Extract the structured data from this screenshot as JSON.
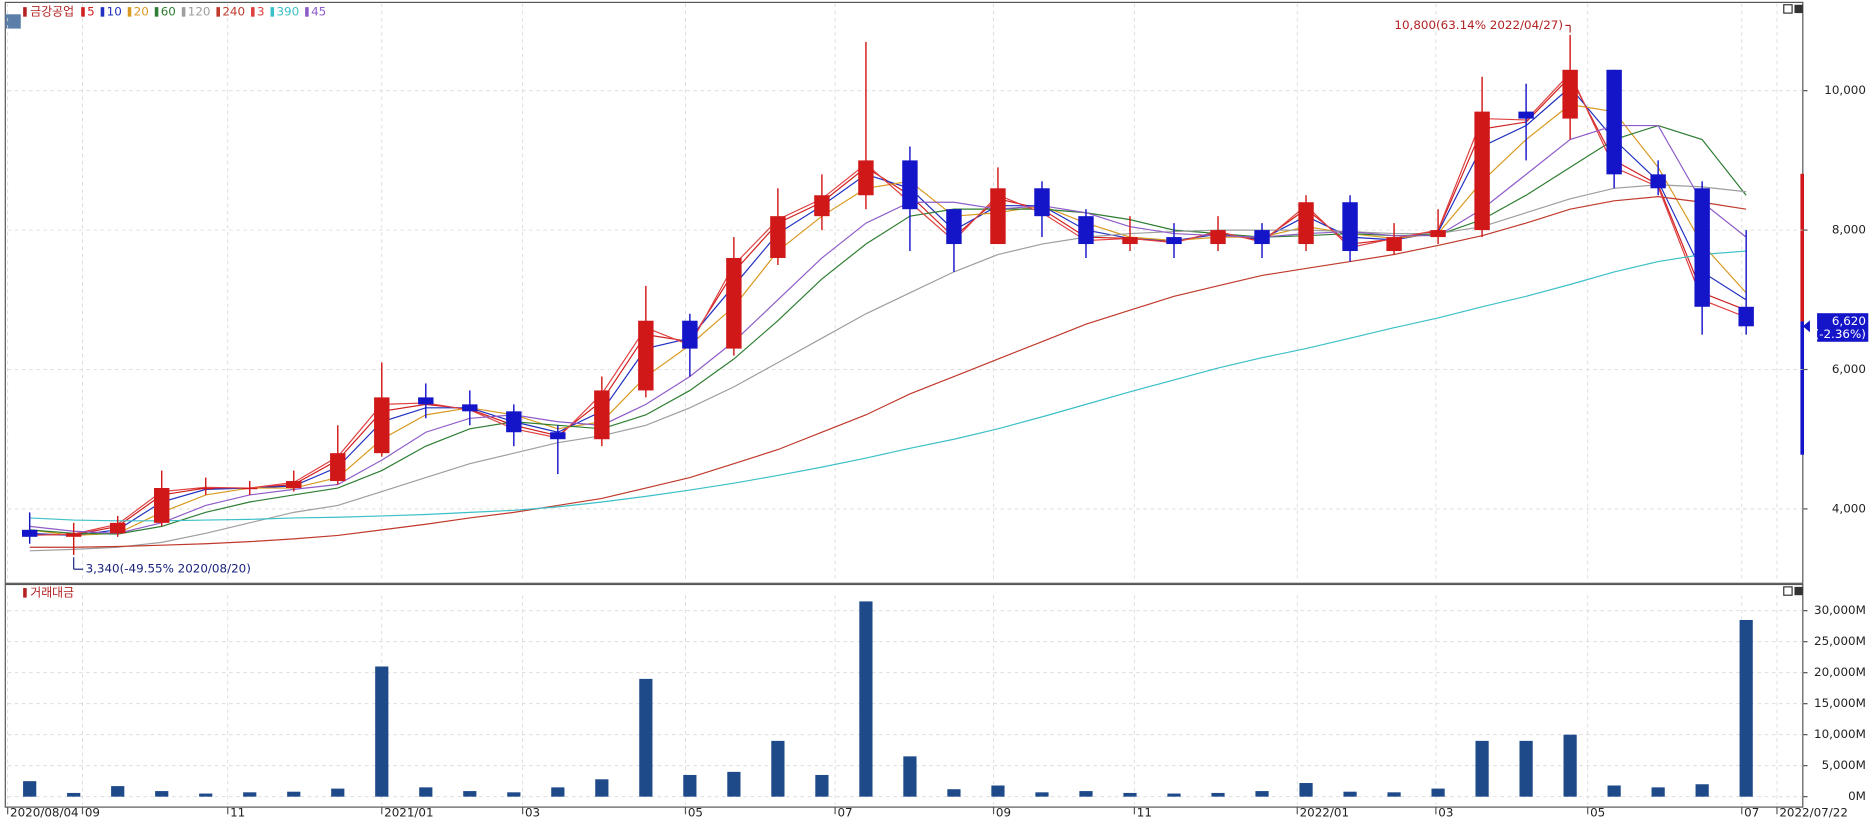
{
  "chart_data": [
    {
      "type": "candlestick",
      "title": "금강공업",
      "open": [
        3700,
        3600,
        3650,
        3800,
        4300,
        4300,
        4300,
        4400,
        4800,
        5600,
        5500,
        5400,
        5100,
        5000,
        5700,
        6700,
        6300,
        7600,
        8200,
        8500,
        9000,
        8300,
        7800,
        8600,
        8200,
        7800,
        7900,
        7800,
        8000,
        7800,
        8400,
        7700,
        7900,
        8000,
        9700,
        9600,
        10300,
        8800,
        8600,
        6900
      ],
      "high": [
        3950,
        3800,
        3900,
        4550,
        4450,
        4400,
        4550,
        5200,
        6100,
        5800,
        5700,
        5500,
        5200,
        5900,
        7200,
        6800,
        7900,
        8600,
        8800,
        10700,
        9200,
        8300,
        8900,
        8700,
        8300,
        8200,
        8100,
        8200,
        8100,
        8500,
        8500,
        8100,
        8300,
        10200,
        10100,
        10800,
        10300,
        9000,
        8700,
        8000
      ],
      "low": [
        3500,
        3340,
        3600,
        3750,
        4200,
        4200,
        4250,
        4350,
        4750,
        5300,
        5200,
        4900,
        4500,
        4900,
        5600,
        5900,
        6200,
        7500,
        8000,
        8300,
        7700,
        7400,
        7800,
        7900,
        7600,
        7700,
        7600,
        7700,
        7600,
        7700,
        7550,
        7650,
        7800,
        7900,
        9000,
        9300,
        8600,
        8500,
        6500,
        6500
      ],
      "close": [
        3600,
        3650,
        3800,
        4300,
        4300,
        4300,
        4400,
        4800,
        5600,
        5500,
        5400,
        5100,
        5000,
        5700,
        6700,
        6300,
        7600,
        8200,
        8500,
        9000,
        8300,
        7800,
        8600,
        8200,
        7800,
        7900,
        7800,
        8000,
        7800,
        8400,
        7700,
        7900,
        8000,
        9700,
        9600,
        10300,
        8800,
        8600,
        6900,
        6620
      ],
      "up_color": "#d01818",
      "down_color": "#1414c8",
      "series": [
        {
          "name": "5",
          "color": "#d02020",
          "values": [
            3630,
            3630,
            3750,
            4200,
            4300,
            4300,
            4350,
            4700,
            5400,
            5500,
            5430,
            5200,
            5050,
            5550,
            6500,
            6400,
            7400,
            8100,
            8400,
            8900,
            8500,
            7900,
            8450,
            8300,
            7900,
            7880,
            7830,
            7960,
            7850,
            8300,
            7800,
            7870,
            7990,
            9450,
            9550,
            10200,
            9000,
            8650,
            7100,
            6850
          ]
        },
        {
          "name": "10",
          "color": "#2030c0",
          "values": [
            3650,
            3620,
            3700,
            4100,
            4280,
            4300,
            4330,
            4600,
            5250,
            5450,
            5450,
            5250,
            5100,
            5400,
            6300,
            6450,
            7200,
            7950,
            8350,
            8800,
            8600,
            8000,
            8350,
            8350,
            8000,
            7880,
            7850,
            7940,
            7870,
            8200,
            7900,
            7860,
            7970,
            9200,
            9500,
            10050,
            9300,
            8700,
            7400,
            7000
          ]
        },
        {
          "name": "20",
          "color": "#d89a20",
          "values": [
            3700,
            3620,
            3650,
            3950,
            4200,
            4300,
            4300,
            4450,
            5000,
            5350,
            5450,
            5350,
            5150,
            5250,
            5900,
            6350,
            6900,
            7700,
            8200,
            8600,
            8700,
            8200,
            8250,
            8350,
            8100,
            7900,
            7850,
            7900,
            7900,
            8050,
            7950,
            7880,
            7950,
            8700,
            9300,
            9800,
            9700,
            8900,
            7800,
            7100
          ]
        },
        {
          "name": "60",
          "color": "#2e7d32",
          "values": [
            3700,
            3650,
            3640,
            3750,
            3950,
            4100,
            4200,
            4300,
            4550,
            4900,
            5150,
            5250,
            5200,
            5150,
            5350,
            5700,
            6150,
            6700,
            7300,
            7800,
            8200,
            8300,
            8300,
            8300,
            8250,
            8150,
            8000,
            7950,
            7900,
            7920,
            7950,
            7920,
            7930,
            8150,
            8500,
            8900,
            9300,
            9500,
            9300,
            8500
          ]
        },
        {
          "name": "120",
          "color": "#9e9e9e",
          "values": [
            3400,
            3420,
            3450,
            3520,
            3650,
            3800,
            3950,
            4050,
            4250,
            4450,
            4650,
            4800,
            4950,
            5050,
            5200,
            5450,
            5750,
            6100,
            6450,
            6800,
            7100,
            7400,
            7650,
            7800,
            7900,
            7950,
            7980,
            8000,
            8000,
            8000,
            7980,
            7950,
            7950,
            8050,
            8250,
            8450,
            8600,
            8650,
            8620,
            8550
          ]
        },
        {
          "name": "240",
          "color": "#c0392b",
          "values": [
            3450,
            3450,
            3460,
            3480,
            3500,
            3530,
            3570,
            3620,
            3700,
            3780,
            3870,
            3950,
            4050,
            4150,
            4300,
            4450,
            4650,
            4850,
            5100,
            5350,
            5650,
            5900,
            6150,
            6400,
            6650,
            6850,
            7050,
            7200,
            7350,
            7450,
            7550,
            7650,
            7780,
            7920,
            8100,
            8300,
            8420,
            8480,
            8400,
            8300
          ]
        },
        {
          "name": "3",
          "color": "#e04040",
          "values": [
            3620,
            3640,
            3780,
            4250,
            4310,
            4300,
            4380,
            4750,
            5500,
            5520,
            5420,
            5150,
            5020,
            5650,
            6600,
            6350,
            7500,
            8150,
            8450,
            8950,
            8400,
            7850,
            8500,
            8250,
            7850,
            7880,
            7820,
            7980,
            7830,
            8350,
            7750,
            7880,
            8000,
            9600,
            9580,
            10250,
            8900,
            8620,
            7000,
            6750
          ]
        },
        {
          "name": "390",
          "color": "#3cc0c8",
          "values": [
            3870,
            3840,
            3830,
            3830,
            3840,
            3850,
            3870,
            3880,
            3900,
            3920,
            3950,
            3980,
            4030,
            4100,
            4180,
            4270,
            4370,
            4480,
            4600,
            4730,
            4870,
            5000,
            5150,
            5320,
            5500,
            5680,
            5850,
            6020,
            6170,
            6300,
            6450,
            6600,
            6740,
            6900,
            7050,
            7220,
            7400,
            7550,
            7650,
            7700
          ]
        },
        {
          "name": "45",
          "color": "#8e5cc8",
          "values": [
            3750,
            3680,
            3650,
            3800,
            4050,
            4200,
            4280,
            4350,
            4700,
            5100,
            5300,
            5350,
            5250,
            5200,
            5500,
            5900,
            6400,
            7000,
            7600,
            8100,
            8400,
            8400,
            8300,
            8350,
            8250,
            8050,
            7950,
            7920,
            7900,
            7950,
            7980,
            7920,
            7920,
            8300,
            8800,
            9300,
            9500,
            9500,
            8400,
            7900
          ]
        }
      ],
      "annotations": [
        {
          "x": 35,
          "value": 10800,
          "label": "10,800(63.14% 2022/04/27)",
          "color": "#b22222"
        },
        {
          "x": 1,
          "value": 3340,
          "label": "3,340(-49.55% 2020/08/20)",
          "color": "#1a237e"
        }
      ],
      "last": {
        "value": 6620,
        "label": "6,620",
        "change": -2.36,
        "change_label": "(-2.36%)"
      },
      "xlim": [
        -0.5,
        39.8
      ],
      "ylim": [
        2950,
        11250
      ],
      "yticks": [
        {
          "value": 4000,
          "label": "4,000"
        },
        {
          "value": 6000,
          "label": "6,000"
        },
        {
          "value": 8000,
          "label": "8,000"
        },
        {
          "value": 10000,
          "label": "10,000"
        }
      ],
      "grid": true
    },
    {
      "type": "bar",
      "title": "거래대금",
      "color": "#1e4a8a",
      "values": [
        2500,
        600,
        1700,
        900,
        500,
        700,
        800,
        1300,
        21000,
        1500,
        900,
        700,
        1500,
        2800,
        19000,
        3500,
        4000,
        9000,
        3500,
        31500,
        6500,
        1200,
        1800,
        700,
        900,
        600,
        500,
        600,
        900,
        2200,
        800,
        700,
        1300,
        9000,
        9000,
        10000,
        1800,
        1500,
        2000,
        28500
      ],
      "xlim": [
        -0.5,
        39.8
      ],
      "ylim": [
        -1300,
        32500
      ],
      "yticks": [
        {
          "value": 0,
          "label": "0M"
        },
        {
          "value": 5000,
          "label": "5,000M"
        },
        {
          "value": 10000,
          "label": "10,000M"
        },
        {
          "value": 15000,
          "label": "15,000M"
        },
        {
          "value": 20000,
          "label": "20,000M"
        },
        {
          "value": 25000,
          "label": "25,000M"
        },
        {
          "value": 30000,
          "label": "30,000M"
        }
      ],
      "xticks": [
        {
          "value": -0.5,
          "label": "2020/08/04"
        },
        {
          "value": 1.2,
          "label": "09"
        },
        {
          "value": 4.5,
          "label": "11"
        },
        {
          "value": 8,
          "label": "2021/01"
        },
        {
          "value": 11.2,
          "label": "03"
        },
        {
          "value": 14.9,
          "label": "05"
        },
        {
          "value": 18.3,
          "label": "07"
        },
        {
          "value": 21.9,
          "label": "09"
        },
        {
          "value": 25.1,
          "label": "11"
        },
        {
          "value": 28.8,
          "label": "2022/01"
        },
        {
          "value": 31.95,
          "label": "03"
        },
        {
          "value": 35.4,
          "label": "05"
        },
        {
          "value": 38.9,
          "label": "07"
        },
        {
          "value": 39.7,
          "label": "2022/07/22"
        }
      ],
      "grid": true
    }
  ]
}
